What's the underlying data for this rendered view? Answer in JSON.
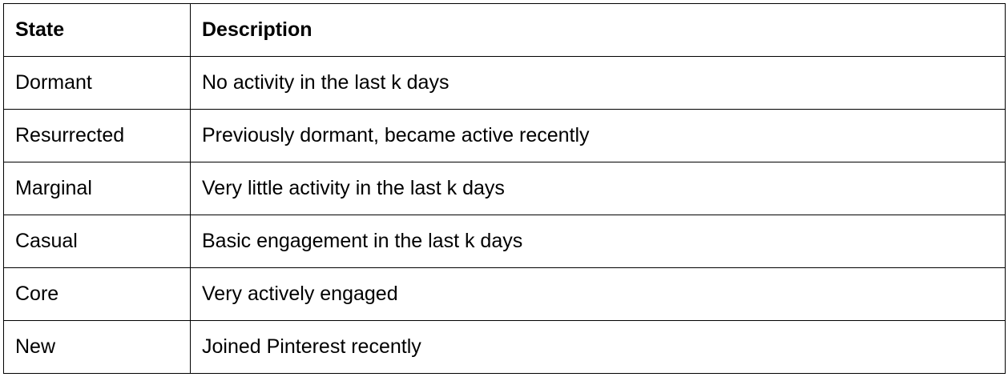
{
  "table": {
    "headers": [
      "State",
      "Description"
    ],
    "rows": [
      [
        "Dormant",
        "No activity in the last k days"
      ],
      [
        "Resurrected",
        "Previously dormant, became active recently"
      ],
      [
        "Marginal",
        "Very little activity in the last k days"
      ],
      [
        "Casual",
        "Basic engagement in the last k days"
      ],
      [
        "Core",
        "Very actively engaged"
      ],
      [
        "New",
        "Joined Pinterest recently"
      ]
    ]
  }
}
